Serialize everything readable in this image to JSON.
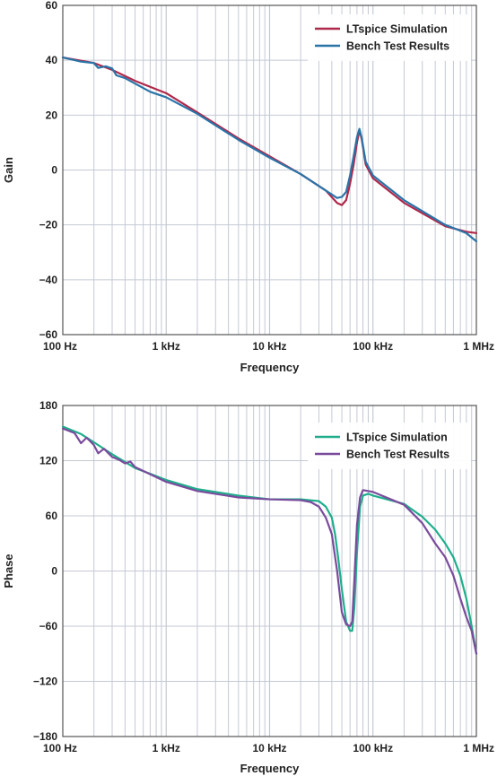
{
  "chart_data": [
    {
      "type": "line",
      "xlabel": "Frequency",
      "ylabel": "Gain",
      "xscale": "log",
      "xlim": [
        100,
        1000000
      ],
      "ylim": [
        -60,
        60
      ],
      "x_ticks": [
        "100 Hz",
        "1 kHz",
        "10 kHz",
        "100 kHz",
        "1 MHz"
      ],
      "y_ticks": [
        "60",
        "40",
        "20",
        "0",
        "−20",
        "−40",
        "−60"
      ],
      "y_tick_values": [
        60,
        40,
        20,
        0,
        -20,
        -40,
        -60
      ],
      "grid": true,
      "legend_position": "top-right",
      "series": [
        {
          "name": "LTspice Simulation",
          "color": "#b0284a",
          "points": [
            [
              100,
              41
            ],
            [
              200,
              39
            ],
            [
              300,
              36.5
            ],
            [
              500,
              32.5
            ],
            [
              1000,
              28
            ],
            [
              2000,
              21
            ],
            [
              5000,
              11.5
            ],
            [
              10000,
              5
            ],
            [
              20000,
              -1.5
            ],
            [
              35000,
              -7.5
            ],
            [
              45000,
              -12
            ],
            [
              50000,
              -12.8
            ],
            [
              55000,
              -11
            ],
            [
              60000,
              -5
            ],
            [
              65000,
              2
            ],
            [
              70000,
              10
            ],
            [
              74000,
              14.5
            ],
            [
              78000,
              11
            ],
            [
              85000,
              2
            ],
            [
              100000,
              -3
            ],
            [
              200000,
              -12
            ],
            [
              500000,
              -20.5
            ],
            [
              800000,
              -22.5
            ],
            [
              1000000,
              -23
            ]
          ]
        },
        {
          "name": "Bench Test Results",
          "color": "#2a74a8",
          "points": [
            [
              100,
              41
            ],
            [
              150,
              39.5
            ],
            [
              200,
              39
            ],
            [
              220,
              37.2
            ],
            [
              260,
              37.8
            ],
            [
              300,
              37
            ],
            [
              330,
              34.5
            ],
            [
              400,
              33.5
            ],
            [
              500,
              31.5
            ],
            [
              700,
              28.5
            ],
            [
              1000,
              26.5
            ],
            [
              2000,
              20.5
            ],
            [
              5000,
              11
            ],
            [
              10000,
              4.5
            ],
            [
              20000,
              -1.5
            ],
            [
              35000,
              -7.5
            ],
            [
              45000,
              -10.2
            ],
            [
              50000,
              -9.8
            ],
            [
              55000,
              -8
            ],
            [
              60000,
              -2
            ],
            [
              65000,
              5
            ],
            [
              70000,
              12
            ],
            [
              74000,
              15
            ],
            [
              78000,
              11.5
            ],
            [
              85000,
              3
            ],
            [
              100000,
              -2
            ],
            [
              200000,
              -11
            ],
            [
              500000,
              -20
            ],
            [
              800000,
              -23
            ],
            [
              1000000,
              -26
            ]
          ]
        }
      ]
    },
    {
      "type": "line",
      "xlabel": "Frequency",
      "ylabel": "Phase",
      "xscale": "log",
      "xlim": [
        100,
        1000000
      ],
      "ylim": [
        -180,
        180
      ],
      "x_ticks": [
        "100 Hz",
        "1 kHz",
        "10 kHz",
        "100 kHz",
        "1 MHz"
      ],
      "y_ticks": [
        "180",
        "120",
        "60",
        "0",
        "−60",
        "−120",
        "−180"
      ],
      "y_tick_values": [
        180,
        120,
        60,
        0,
        -60,
        -120,
        -180
      ],
      "grid": true,
      "legend_position": "top-right",
      "series": [
        {
          "name": "LTspice Simulation",
          "color": "#1fae8c",
          "points": [
            [
              100,
              157
            ],
            [
              150,
              149
            ],
            [
              200,
              140
            ],
            [
              300,
              127
            ],
            [
              500,
              112
            ],
            [
              1000,
              99
            ],
            [
              2000,
              89
            ],
            [
              5000,
              82
            ],
            [
              10000,
              78
            ],
            [
              20000,
              78
            ],
            [
              30000,
              76
            ],
            [
              35000,
              70
            ],
            [
              40000,
              58
            ],
            [
              43000,
              40
            ],
            [
              46000,
              15
            ],
            [
              50000,
              -20
            ],
            [
              55000,
              -55
            ],
            [
              60000,
              -65
            ],
            [
              63000,
              -65
            ],
            [
              66000,
              -40
            ],
            [
              70000,
              20
            ],
            [
              75000,
              70
            ],
            [
              80000,
              82
            ],
            [
              90000,
              84
            ],
            [
              100000,
              82
            ],
            [
              200000,
              73
            ],
            [
              300000,
              59
            ],
            [
              400000,
              45
            ],
            [
              500000,
              30
            ],
            [
              600000,
              15
            ],
            [
              700000,
              -5
            ],
            [
              800000,
              -30
            ],
            [
              900000,
              -60
            ],
            [
              1000000,
              -90
            ]
          ]
        },
        {
          "name": "Bench Test Results",
          "color": "#7a4b9c",
          "points": [
            [
              100,
              155
            ],
            [
              130,
              150
            ],
            [
              150,
              139
            ],
            [
              170,
              145
            ],
            [
              200,
              137
            ],
            [
              220,
              128
            ],
            [
              250,
              133
            ],
            [
              300,
              124
            ],
            [
              350,
              121
            ],
            [
              400,
              117
            ],
            [
              450,
              119
            ],
            [
              500,
              113
            ],
            [
              1000,
              97
            ],
            [
              2000,
              87
            ],
            [
              5000,
              80
            ],
            [
              10000,
              78
            ],
            [
              20000,
              77
            ],
            [
              25000,
              75
            ],
            [
              30000,
              70
            ],
            [
              35000,
              58
            ],
            [
              40000,
              40
            ],
            [
              45000,
              0
            ],
            [
              50000,
              -45
            ],
            [
              55000,
              -58
            ],
            [
              60000,
              -60
            ],
            [
              63000,
              -55
            ],
            [
              66000,
              -10
            ],
            [
              70000,
              50
            ],
            [
              75000,
              80
            ],
            [
              80000,
              88
            ],
            [
              100000,
              86
            ],
            [
              200000,
              72
            ],
            [
              300000,
              52
            ],
            [
              400000,
              30
            ],
            [
              500000,
              15
            ],
            [
              600000,
              -5
            ],
            [
              700000,
              -30
            ],
            [
              800000,
              -50
            ],
            [
              900000,
              -65
            ],
            [
              1000000,
              -90
            ]
          ]
        }
      ]
    }
  ]
}
